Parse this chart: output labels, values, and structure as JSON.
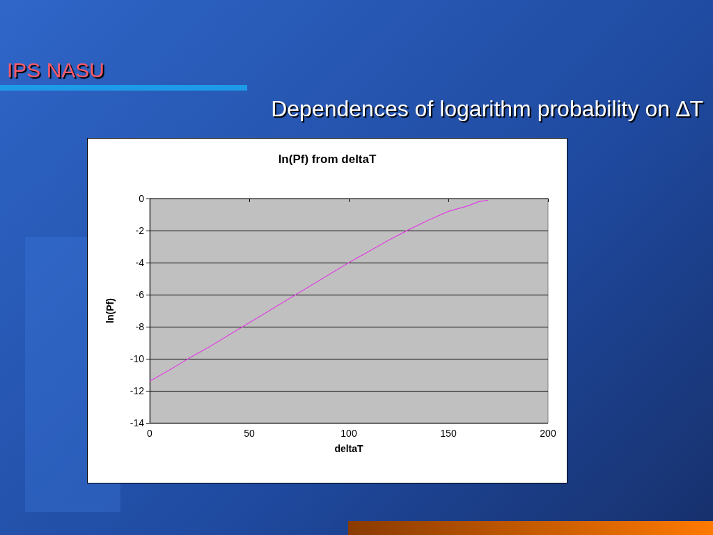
{
  "chart_data": {
    "type": "line",
    "title": "ln(Pf) from deltaT",
    "xlabel": "deltaT",
    "ylabel": "ln(Pf)",
    "annotations": [
      "IPS NASU",
      "Dependences of logarithm probability on ∆T"
    ],
    "x": [
      0,
      10,
      20,
      30,
      40,
      50,
      60,
      70,
      80,
      90,
      100,
      110,
      120,
      130,
      140,
      150,
      160,
      165,
      170
    ],
    "series": [
      {
        "color": "#e040e0",
        "values": [
          -11.4,
          -10.7,
          -9.95,
          -9.25,
          -8.5,
          -7.75,
          -7.0,
          -6.25,
          -5.5,
          -4.75,
          -4.0,
          -3.3,
          -2.6,
          -1.95,
          -1.35,
          -0.8,
          -0.45,
          -0.2,
          -0.1
        ]
      }
    ],
    "xlim": [
      0,
      200
    ],
    "xticks": [
      0,
      50,
      100,
      150,
      200
    ],
    "ylim": [
      -14,
      0
    ],
    "yticks": [
      -14,
      -12,
      -10,
      -8,
      -6,
      -4,
      -2,
      0
    ],
    "grid": "y",
    "marker": "none",
    "line_style": "solid"
  }
}
